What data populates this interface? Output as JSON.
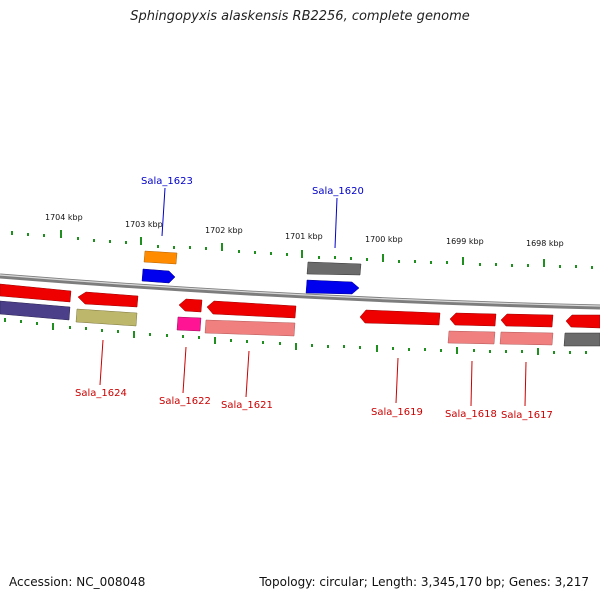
{
  "title": "Sphingopyxis alaskensis RB2256, complete genome",
  "footer": {
    "accession": "Accession: NC_008048",
    "summary": "Topology: circular; Length: 3,345,170 bp; Genes: 3,217"
  },
  "colors": {
    "backbone": "#8c8c8c",
    "tick": "#1f8f1f",
    "label_forward": "#0000cc",
    "label_reverse": "#cc0000"
  },
  "ticks": [
    "1704 kbp",
    "1703 kbp",
    "1702 kbp",
    "1701 kbp",
    "1700 kbp",
    "1699 kbp",
    "1698 kbp"
  ],
  "labels": {
    "forward": [
      "Sala_1623",
      "Sala_1620"
    ],
    "reverse": [
      "Sala_1624",
      "Sala_1622",
      "Sala_1621",
      "Sala_1619",
      "Sala_1618",
      "Sala_1617"
    ]
  }
}
